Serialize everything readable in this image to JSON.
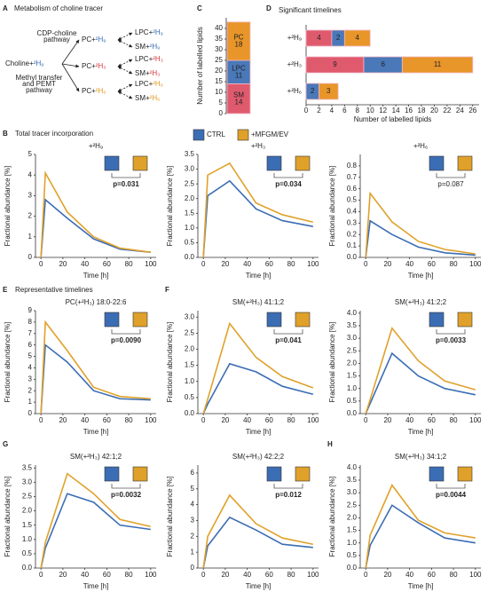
{
  "diagram": {
    "panel": "A",
    "title": "Metabolism of choline tracer",
    "source": {
      "lipid": "Choline+",
      "tracer": "²H₉",
      "color": "#3b6db4"
    },
    "pathways": [
      [
        "CDP-choline",
        "pathway"
      ],
      [
        "Methyl transfer",
        "and PEMT",
        "pathway"
      ]
    ],
    "nodes": [
      {
        "lipid": "PC+",
        "tracer": "²H₉",
        "color": "#3b6db4"
      },
      {
        "lipid": "LPC+",
        "tracer": "²H₉",
        "color": "#3b6db4"
      },
      {
        "lipid": "SM+",
        "tracer": "²H₉",
        "color": "#3b6db4"
      },
      {
        "lipid": "PC+",
        "tracer": "²H₃",
        "color": "#d9363e"
      },
      {
        "lipid": "LPC+",
        "tracer": "²H₃",
        "color": "#d9363e"
      },
      {
        "lipid": "SM+",
        "tracer": "²H₃",
        "color": "#d9363e"
      },
      {
        "lipid": "PC+",
        "tracer": "²H₆",
        "color": "#e09a22"
      },
      {
        "lipid": "LPC+",
        "tracer": "²H₆",
        "color": "#e09a22"
      },
      {
        "lipid": "SM+",
        "tracer": "²H₆",
        "color": "#e09a22"
      }
    ]
  },
  "legend": {
    "items": [
      {
        "name": "CTRL",
        "color": "#3b6db4"
      },
      {
        "name": "+MFGM/EV",
        "color": "#e0a12a"
      }
    ]
  },
  "chart_data": [
    {
      "type": "stacked_column",
      "panel": "C",
      "ylabel": "Number of labelled lipids",
      "ylim": [
        0,
        45
      ],
      "yticks": [
        0,
        5,
        10,
        15,
        20,
        25,
        30,
        35,
        40
      ],
      "series": [
        {
          "name": "SM",
          "color": "#e05a6e",
          "values": [
            14
          ]
        },
        {
          "name": "LPC",
          "color": "#4a78b8",
          "values": [
            11
          ]
        },
        {
          "name": "PC",
          "color": "#e8952a",
          "values": [
            18
          ]
        }
      ]
    },
    {
      "type": "stacked_hbar",
      "panel": "D",
      "title": "Significant timelines",
      "xlabel": "Number of labelled lipids",
      "categories": [
        "+²H₉",
        "+²H₃",
        "+²H₆"
      ],
      "xlim": [
        0,
        27
      ],
      "xticks": [
        0,
        2,
        4,
        6,
        8,
        10,
        12,
        14,
        16,
        18,
        20,
        22,
        24,
        26
      ],
      "series": [
        {
          "color": "#e05a6e",
          "values": [
            4,
            9,
            0
          ]
        },
        {
          "color": "#4a78b8",
          "values": [
            2,
            6,
            2
          ]
        },
        {
          "color": "#e8952a",
          "values": [
            4,
            11,
            3
          ]
        }
      ]
    },
    {
      "type": "line",
      "panel": "B",
      "heading": "Total tracer incorporation",
      "title": "+²H₉",
      "xlabel": "Time [h]",
      "ylabel": "Fractional abundance [%]",
      "x": [
        0,
        4,
        24,
        48,
        72,
        100
      ],
      "xlim": [
        -5,
        105
      ],
      "xticks": [
        0,
        20,
        40,
        60,
        80,
        100
      ],
      "ylim": [
        0,
        5
      ],
      "yticks": [
        0,
        1,
        2,
        3,
        4,
        5
      ],
      "series": [
        {
          "values": [
            0,
            2.8,
            1.9,
            0.9,
            0.4,
            0.25
          ]
        },
        {
          "values": [
            0,
            4.1,
            2.2,
            1.0,
            0.45,
            0.25
          ]
        }
      ],
      "p_value": "p=0.031",
      "p_bold": true
    },
    {
      "type": "line",
      "title": "+²H₃",
      "xlabel": "Time [h]",
      "ylabel": "Fractional abundance [%]",
      "x": [
        0,
        4,
        24,
        48,
        72,
        100
      ],
      "xlim": [
        -5,
        105
      ],
      "xticks": [
        0,
        20,
        40,
        60,
        80,
        100
      ],
      "ylim": [
        0,
        3.5
      ],
      "yticks": [
        {
          "value": 0,
          "label": "0.0"
        },
        0.5,
        {
          "value": 1,
          "label": "1.0"
        },
        1.5,
        {
          "value": 2,
          "label": "2.0"
        },
        2.5,
        {
          "value": 3,
          "label": "3.0"
        },
        3.5
      ],
      "series": [
        {
          "values": [
            0,
            2.1,
            2.6,
            1.65,
            1.25,
            1.05
          ]
        },
        {
          "values": [
            0,
            2.8,
            3.2,
            1.85,
            1.45,
            1.2
          ]
        }
      ],
      "p_value": "p=0.034",
      "p_bold": true
    },
    {
      "type": "line",
      "title": "+²H₆",
      "xlabel": "Time [h]",
      "ylabel": "Fractional abundance [%]",
      "x": [
        0,
        4,
        24,
        48,
        72,
        100
      ],
      "xlim": [
        -5,
        105
      ],
      "xticks": [
        0,
        20,
        40,
        60,
        80,
        100
      ],
      "ylim": [
        0,
        0.9
      ],
      "yticks": [
        {
          "value": 0,
          "label": "0.0"
        },
        0.1,
        0.2,
        0.3,
        0.4,
        0.5,
        0.6,
        0.7,
        0.8
      ],
      "series": [
        {
          "values": [
            0,
            0.32,
            0.2,
            0.09,
            0.04,
            0.02
          ]
        },
        {
          "values": [
            0,
            0.56,
            0.31,
            0.14,
            0.07,
            0.03
          ]
        }
      ],
      "p_value": "p=0.087",
      "p_bold": false
    },
    {
      "type": "line",
      "panel": "E",
      "heading": "Representative timelines",
      "title": "PC(+²H₃) 18:0-22:6",
      "xlabel": "Time [h]",
      "ylabel": "Fractional abundance [%]",
      "x": [
        0,
        4,
        24,
        48,
        72,
        100
      ],
      "xlim": [
        -5,
        105
      ],
      "xticks": [
        0,
        20,
        40,
        60,
        80,
        100
      ],
      "ylim": [
        0,
        9
      ],
      "yticks": [
        0,
        1,
        2,
        3,
        4,
        5,
        6,
        7,
        8,
        9
      ],
      "series": [
        {
          "values": [
            0,
            6.0,
            4.5,
            2.0,
            1.3,
            1.2
          ]
        },
        {
          "values": [
            0,
            8.0,
            5.5,
            2.3,
            1.5,
            1.3
          ]
        }
      ],
      "p_value": "p=0.0090",
      "p_bold": true
    },
    {
      "type": "line",
      "panel": "F",
      "title": "SM(+²H₃) 41:1;2",
      "xlabel": "Time [h]",
      "ylabel": "Fractional abundance [%]",
      "x": [
        0,
        4,
        24,
        48,
        72,
        100
      ],
      "xlim": [
        -5,
        105
      ],
      "xticks": [
        0,
        20,
        40,
        60,
        80,
        100
      ],
      "ylim": [
        0,
        3.2
      ],
      "yticks": [
        {
          "value": 0,
          "label": "0.0"
        },
        0.5,
        {
          "value": 1,
          "label": "1.0"
        },
        1.5,
        {
          "value": 2,
          "label": "2.0"
        },
        2.5,
        {
          "value": 3,
          "label": "3.0"
        }
      ],
      "series": [
        {
          "values": [
            0,
            0.3,
            1.55,
            1.3,
            0.85,
            0.6
          ]
        },
        {
          "values": [
            0,
            0.45,
            2.8,
            1.75,
            1.15,
            0.8
          ]
        }
      ],
      "p_value": "p=0.041",
      "p_bold": true
    },
    {
      "type": "line",
      "title": "SM(+²H₃) 41:2;2",
      "xlabel": "Time [h]",
      "ylabel": "Fractional abundance [%]",
      "x": [
        0,
        4,
        24,
        48,
        72,
        100
      ],
      "xlim": [
        -5,
        105
      ],
      "xticks": [
        0,
        20,
        40,
        60,
        80,
        100
      ],
      "ylim": [
        0,
        4.1
      ],
      "yticks": [
        {
          "value": 0,
          "label": "0.0"
        },
        0.5,
        {
          "value": 1,
          "label": "1.0"
        },
        1.5,
        {
          "value": 2,
          "label": "2.0"
        },
        2.5,
        {
          "value": 3,
          "label": "3.0"
        },
        3.5,
        {
          "value": 4,
          "label": "4.0"
        }
      ],
      "series": [
        {
          "values": [
            0,
            0.4,
            2.4,
            1.5,
            1.0,
            0.75
          ]
        },
        {
          "values": [
            0,
            0.55,
            3.4,
            2.1,
            1.3,
            0.95
          ]
        }
      ],
      "p_value": "p=0.0033",
      "p_bold": true
    },
    {
      "type": "line",
      "panel": "G",
      "title": "SM(+²H₃) 42:1;2",
      "xlabel": "Time [h]",
      "ylabel": "Fractional abundance [%]",
      "x": [
        0,
        4,
        24,
        48,
        72,
        100
      ],
      "xlim": [
        -5,
        105
      ],
      "xticks": [
        0,
        20,
        40,
        60,
        80,
        100
      ],
      "ylim": [
        0,
        3.6
      ],
      "yticks": [
        {
          "value": 0,
          "label": "0.0"
        },
        0.5,
        {
          "value": 1,
          "label": "1.0"
        },
        1.5,
        {
          "value": 2,
          "label": "2.0"
        },
        2.5,
        {
          "value": 3,
          "label": "3.0"
        },
        3.5
      ],
      "series": [
        {
          "values": [
            0,
            0.7,
            2.6,
            2.3,
            1.5,
            1.35
          ]
        },
        {
          "values": [
            0,
            0.9,
            3.3,
            2.6,
            1.7,
            1.45
          ]
        }
      ],
      "p_value": "p=0.0032",
      "p_bold": true
    },
    {
      "type": "line",
      "title": "SM(+²H₃) 42:2;2",
      "xlabel": "Time [h]",
      "ylabel": "Fractional abundance [%]",
      "x": [
        0,
        4,
        24,
        48,
        72,
        100
      ],
      "xlim": [
        -5,
        105
      ],
      "xticks": [
        0,
        20,
        40,
        60,
        80,
        100
      ],
      "ylim": [
        0,
        6.5
      ],
      "yticks": [
        0,
        1,
        2,
        3,
        4,
        5,
        6
      ],
      "series": [
        {
          "values": [
            0,
            1.4,
            3.2,
            2.4,
            1.5,
            1.3
          ]
        },
        {
          "values": [
            0,
            2.0,
            4.6,
            2.8,
            1.9,
            1.5
          ]
        }
      ],
      "p_value": "p=0.012",
      "p_bold": true
    },
    {
      "type": "line",
      "panel": "H",
      "title": "SM(+²H₃) 34:1;2",
      "xlabel": "Time [h]",
      "ylabel": "Fractional abundance [%]",
      "x": [
        0,
        4,
        24,
        48,
        72,
        100
      ],
      "xlim": [
        -5,
        105
      ],
      "xticks": [
        0,
        20,
        40,
        60,
        80,
        100
      ],
      "ylim": [
        0,
        4.1
      ],
      "yticks": [
        {
          "value": 0,
          "label": "0.0"
        },
        0.5,
        {
          "value": 1,
          "label": "1.0"
        },
        1.5,
        {
          "value": 2,
          "label": "2.0"
        },
        2.5,
        {
          "value": 3,
          "label": "3.0"
        },
        3.5,
        {
          "value": 4,
          "label": "4.0"
        }
      ],
      "series": [
        {
          "values": [
            0,
            0.9,
            2.5,
            1.8,
            1.2,
            1.0
          ]
        },
        {
          "values": [
            0,
            1.3,
            3.3,
            1.9,
            1.4,
            1.2
          ]
        }
      ],
      "p_value": "p=0.0044",
      "p_bold": true
    }
  ]
}
